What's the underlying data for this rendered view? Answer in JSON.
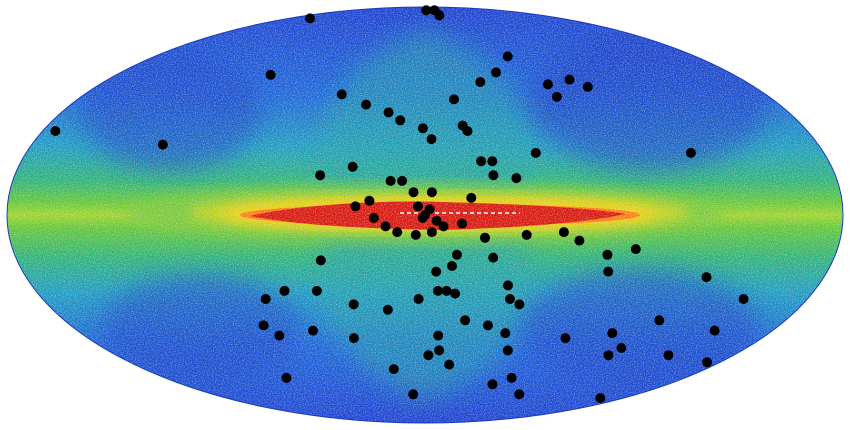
{
  "figure": {
    "projection": "mollweide",
    "frame": "galactic",
    "colormap": [
      "#1e3fd0",
      "#1d66d8",
      "#1f9bc0",
      "#2fb27a",
      "#63c63a",
      "#c7d520",
      "#f7d11a",
      "#ff8a12",
      "#e32612",
      "#c80d0d"
    ],
    "background_color": "#ffffff",
    "marker_color": "#000000"
  },
  "chart_data": {
    "type": "scatter",
    "title": "",
    "xlabel": "",
    "ylabel": "",
    "xlim": [
      -180,
      180
    ],
    "ylim": [
      -90,
      90
    ],
    "grid": false,
    "points_lon_lat": [
      [
        152,
        80
      ],
      [
        -3,
        86
      ],
      [
        -22,
        82
      ],
      [
        -23,
        86
      ],
      [
        90,
        52
      ],
      [
        -31,
        49
      ],
      [
        -42,
        53
      ],
      [
        -55,
        60
      ],
      [
        -69,
        43
      ],
      [
        -68,
        48
      ],
      [
        -89,
        47
      ],
      [
        -82,
        50
      ],
      [
        44,
        44
      ],
      [
        30,
        40
      ],
      [
        18,
        37
      ],
      [
        -15,
        42
      ],
      [
        12,
        34
      ],
      [
        1,
        31
      ],
      [
        -18,
        32
      ],
      [
        -20,
        30
      ],
      [
        -3,
        27
      ],
      [
        -30,
        19
      ],
      [
        -50,
        22
      ],
      [
        -120,
        22
      ],
      [
        174,
        30
      ],
      [
        120,
        25
      ],
      [
        46,
        14
      ],
      [
        32,
        17
      ],
      [
        15,
        12
      ],
      [
        -25,
        19
      ],
      [
        -30,
        14
      ],
      [
        -40,
        13
      ],
      [
        5,
        8
      ],
      [
        -3,
        8
      ],
      [
        3,
        3
      ],
      [
        -2,
        2
      ],
      [
        0,
        0
      ],
      [
        1,
        -1
      ],
      [
        -5,
        -2
      ],
      [
        -8,
        -4
      ],
      [
        -3,
        -6
      ],
      [
        4,
        -7
      ],
      [
        12,
        -6
      ],
      [
        17,
        -4
      ],
      [
        22,
        -1
      ],
      [
        -16,
        -3
      ],
      [
        -26,
        -8
      ],
      [
        -44,
        -7
      ],
      [
        -60,
        -6
      ],
      [
        -92,
        -12
      ],
      [
        24,
        5
      ],
      [
        30,
        3
      ],
      [
        -20,
        6
      ],
      [
        10,
        12
      ],
      [
        -14,
        -14
      ],
      [
        -12,
        -18
      ],
      [
        -30,
        -15
      ],
      [
        -38,
        -25
      ],
      [
        -67,
        -9
      ],
      [
        -80,
        -14
      ],
      [
        46,
        -16
      ],
      [
        -5,
        -20
      ],
      [
        -10,
        -27
      ],
      [
        -40,
        -30
      ],
      [
        -45,
        -32
      ],
      [
        -82,
        -20
      ],
      [
        -127,
        -22
      ],
      [
        -75,
        -45
      ],
      [
        -98,
        -43
      ],
      [
        -107,
        -52
      ],
      [
        -110,
        -49
      ],
      [
        -117,
        -38
      ],
      [
        -150,
        -42
      ],
      [
        -150,
        -30
      ],
      [
        -172,
        -55
      ],
      [
        -142,
        -52
      ],
      [
        -159,
        -72
      ],
      [
        -60,
        -62
      ],
      [
        -80,
        -70
      ],
      [
        10,
        -70
      ],
      [
        20,
        -58
      ],
      [
        38,
        -45
      ],
      [
        58,
        -42
      ],
      [
        65,
        -27
      ],
      [
        75,
        -30
      ],
      [
        82,
        -40
      ],
      [
        77,
        -44
      ],
      [
        96,
        -62
      ],
      [
        -8,
        -50
      ],
      [
        -15,
        -56
      ],
      [
        -50,
        -65
      ],
      [
        -14,
        -28
      ],
      [
        -6,
        -27
      ],
      [
        3,
        -30
      ],
      [
        18,
        -34
      ],
      [
        34,
        -32
      ],
      [
        50,
        -27
      ],
      [
        -20,
        -38
      ],
      [
        -32,
        -40
      ],
      [
        -42,
        -43
      ],
      [
        -47,
        -50
      ],
      [
        -7,
        -44
      ],
      [
        -2,
        -52
      ]
    ]
  }
}
